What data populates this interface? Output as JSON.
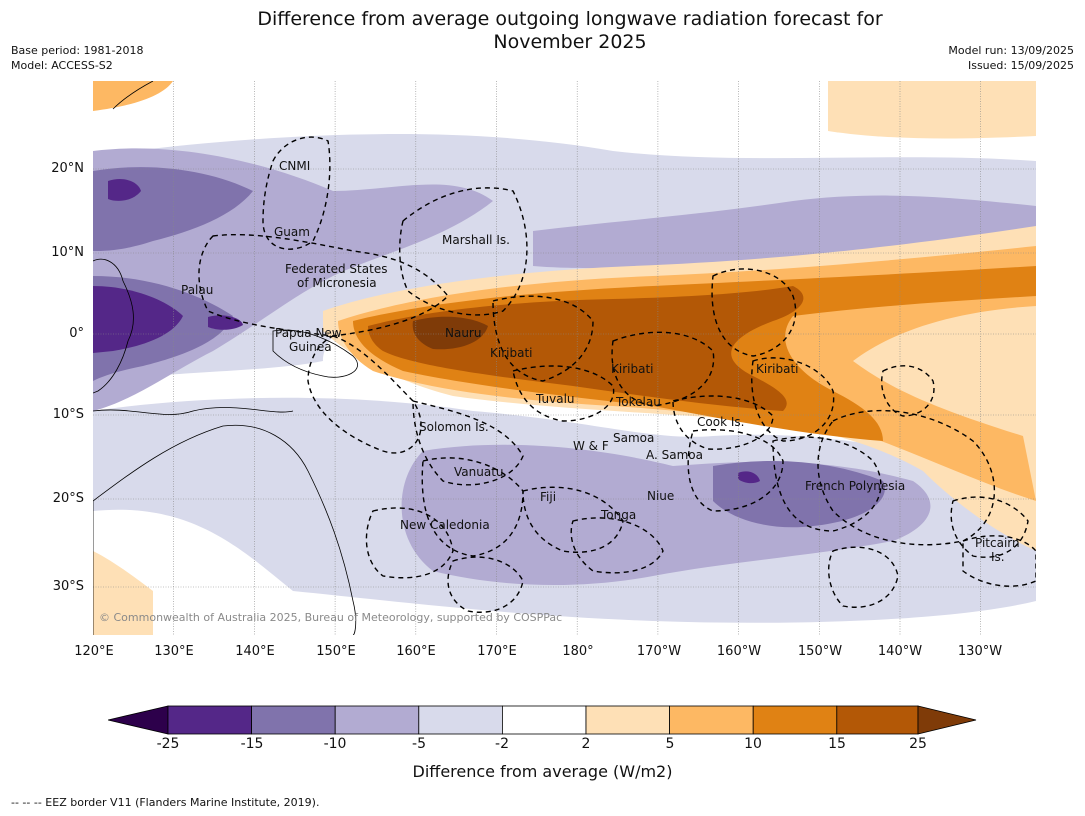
{
  "header": {
    "title_line1": "Difference from average outgoing longwave radiation forecast for",
    "title_line2": "November 2025",
    "base_period": "Base period: 1981-2018",
    "model": "Model: ACCESS-S2",
    "model_run": "Model run: 13/09/2025",
    "issued": "Issued: 15/09/2025"
  },
  "map": {
    "lat_labels": [
      "20°N",
      "10°N",
      "0°",
      "10°S",
      "20°S",
      "30°S"
    ],
    "lon_labels": [
      "120°E",
      "130°E",
      "140°E",
      "150°E",
      "160°E",
      "170°E",
      "180°",
      "170°W",
      "160°W",
      "150°W",
      "140°W",
      "130°W"
    ],
    "regions": {
      "cnmi": "CNMI",
      "guam": "Guam",
      "marshall": "Marshall Is.",
      "fsm_1": "Federated States",
      "fsm_2": "of Micronesia",
      "palau": "Palau",
      "png_1": "Papua New",
      "png_2": "Guinea",
      "nauru": "Nauru",
      "kiribati_w": "Kiribati",
      "kiribati_c": "Kiribati",
      "kiribati_e": "Kiribati",
      "tuvalu": "Tuvalu",
      "tokelau": "Tokelau",
      "cook": "Cook Is.",
      "solomon": "Solomon Is.",
      "wf": "W & F",
      "samoa": "Samoa",
      "asamoa": "A. Samoa",
      "vanuatu": "Vanuatu",
      "fiji": "Fiji",
      "niue": "Niue",
      "tonga": "Tonga",
      "new_caledonia": "New Caledonia",
      "french_polynesia": "French Polynesia",
      "pitcairn_1": "Pitcairn",
      "pitcairn_2": "Is."
    },
    "copyright": "© Commonwealth of Australia 2025, Bureau of Meteorology, supported by COSPPac"
  },
  "colorbar": {
    "ticks": [
      "-25",
      "-15",
      "-10",
      "-5",
      "-2",
      "2",
      "5",
      "10",
      "15",
      "25"
    ],
    "colors": [
      "#2d004b",
      "#542788",
      "#8073ac",
      "#b2abd2",
      "#d8daeb",
      "#ffffff",
      "#fee0b6",
      "#fdb863",
      "#e08214",
      "#b35806",
      "#7f3b08"
    ],
    "label": "Difference from average (W/m2)"
  },
  "footnote": "--  --  -- EEZ border V11 (Flanders Marine Institute, 2019)."
}
